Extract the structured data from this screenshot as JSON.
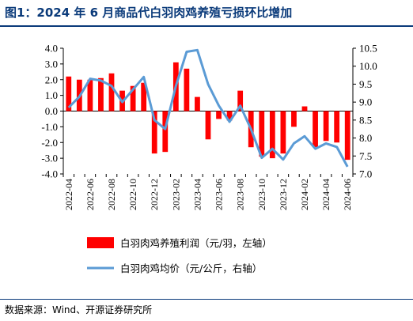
{
  "header": {
    "title": "图1：2024 年 6 月商品代白羽肉鸡养殖亏损环比增加"
  },
  "footer": {
    "source": "数据来源：Wind、开源证券研究所"
  },
  "colors": {
    "bar": "#ff0000",
    "line": "#5b9bd5",
    "title": "#0a3a7a"
  },
  "chart_data": {
    "type": "bar+line",
    "x_ticks": [
      "2022-04",
      "2022-06",
      "2022-08",
      "2022-10",
      "2022-12",
      "2023-02",
      "2023-04",
      "2023-06",
      "2023-08",
      "2023-10",
      "2023-12",
      "2024-02",
      "2024-04",
      "2024-06"
    ],
    "categories": [
      "2022-04",
      "2022-05",
      "2022-06",
      "2022-07",
      "2022-08",
      "2022-09",
      "2022-10",
      "2022-11",
      "2022-12",
      "2023-01",
      "2023-02",
      "2023-03",
      "2023-04",
      "2023-05",
      "2023-06",
      "2023-07",
      "2023-08",
      "2023-09",
      "2023-10",
      "2023-11",
      "2023-12",
      "2024-01",
      "2024-02",
      "2024-03",
      "2024-04",
      "2024-05",
      "2024-06"
    ],
    "series": [
      {
        "name": "白羽肉鸡养殖利润（元/羽，左轴）",
        "type": "bar",
        "axis": "left",
        "values": [
          2.2,
          2.0,
          2.0,
          2.1,
          2.4,
          1.3,
          1.6,
          1.8,
          -2.7,
          -2.6,
          3.1,
          2.7,
          0.9,
          -1.8,
          -0.5,
          -0.6,
          1.3,
          -2.3,
          -2.9,
          -3.0,
          -2.7,
          -1.0,
          0.3,
          -2.3,
          -1.9,
          -2.0,
          -3.1
        ]
      },
      {
        "name": "白羽肉鸡均价（元/公斤，右轴）",
        "type": "line",
        "axis": "right",
        "values": [
          8.85,
          9.15,
          9.65,
          9.6,
          9.45,
          9.0,
          9.35,
          9.7,
          8.5,
          8.25,
          9.45,
          10.4,
          10.45,
          9.5,
          8.9,
          8.45,
          8.9,
          8.25,
          7.45,
          7.7,
          7.4,
          7.85,
          8.05,
          7.7,
          7.85,
          7.75,
          7.2
        ]
      }
    ],
    "y_left": {
      "min": -4.0,
      "max": 4.0,
      "ticks": [
        "4.0",
        "3.0",
        "2.0",
        "1.0",
        "0.0",
        "-1.0",
        "-2.0",
        "-3.0",
        "-4.0"
      ]
    },
    "y_right": {
      "min": 7.0,
      "max": 10.5,
      "ticks": [
        "10.5",
        "10.0",
        "9.5",
        "9.0",
        "8.5",
        "8.0",
        "7.5",
        "7.0"
      ]
    },
    "legend": {
      "placement": "bottom",
      "bar_label": "白羽肉鸡养殖利润（元/羽，左轴）",
      "line_label": "白羽肉鸡均价（元/公斤，右轴）"
    },
    "grid": false
  }
}
